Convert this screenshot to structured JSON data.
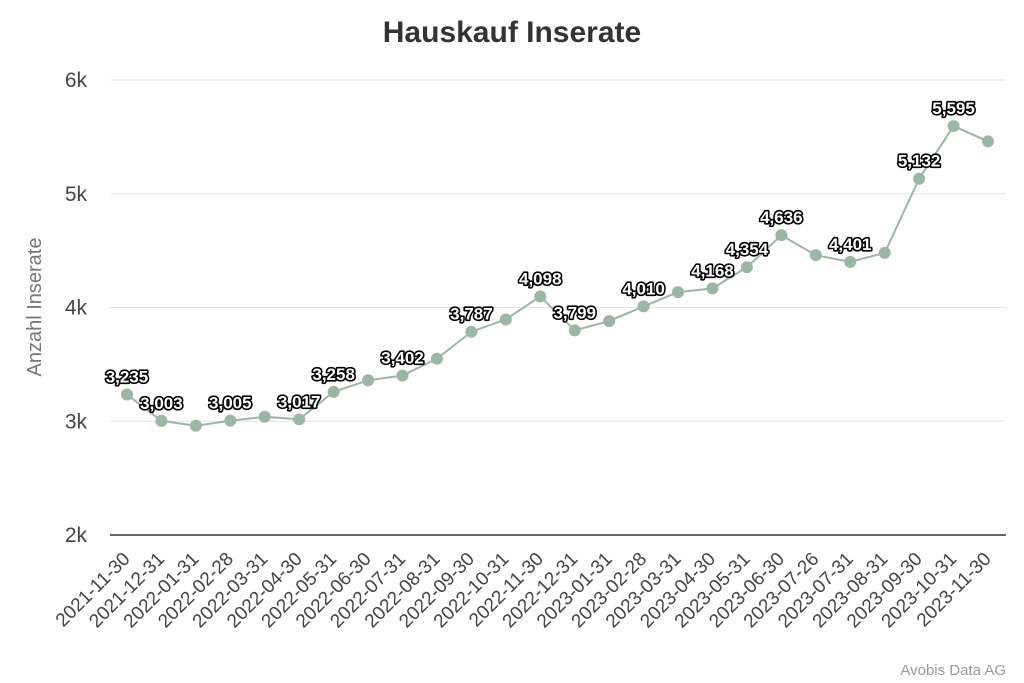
{
  "chart_data": {
    "type": "line",
    "title": "Hauskauf Inserate",
    "xlabel": "",
    "ylabel": "Anzahl Inserate",
    "ylim": [
      2000,
      6000
    ],
    "yticks": [
      {
        "value": 2000,
        "label": "2k"
      },
      {
        "value": 3000,
        "label": "3k"
      },
      {
        "value": 4000,
        "label": "4k"
      },
      {
        "value": 5000,
        "label": "5k"
      },
      {
        "value": 6000,
        "label": "6k"
      }
    ],
    "grid": true,
    "line_color": "#9db5a5",
    "categories": [
      "2021-11-30",
      "2021-12-31",
      "2022-01-31",
      "2022-02-28",
      "2022-03-31",
      "2022-04-30",
      "2022-05-31",
      "2022-06-30",
      "2022-07-31",
      "2022-08-31",
      "2022-09-30",
      "2022-10-31",
      "2022-11-30",
      "2022-12-31",
      "2023-01-31",
      "2023-02-28",
      "2023-03-31",
      "2023-04-30",
      "2023-05-31",
      "2023-06-30",
      "2023-07-26",
      "2023-07-31",
      "2023-08-31",
      "2023-09-30",
      "2023-10-31",
      "2023-11-30"
    ],
    "values": [
      3235,
      3003,
      2960,
      3005,
      3040,
      3017,
      3258,
      3360,
      3402,
      3550,
      3787,
      3895,
      4098,
      3799,
      3880,
      4010,
      4135,
      4168,
      4354,
      4636,
      4460,
      4401,
      4480,
      5132,
      5595,
      5460
    ],
    "data_labels": [
      "3,235",
      "3,003",
      "",
      "3,005",
      "",
      "3,017",
      "3,258",
      "",
      "3,402",
      "",
      "3,787",
      "",
      "4,098",
      "3,799",
      "",
      "4,010",
      "",
      "4,168",
      "4,354",
      "4,636",
      "",
      "4,401",
      "",
      "5,132",
      "5,595",
      ""
    ]
  },
  "credit": "Avobis Data AG"
}
